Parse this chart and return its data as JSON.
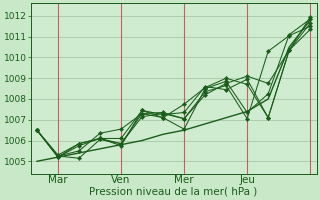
{
  "background_color": "#c8e8c8",
  "plot_bg_color": "#d0ecd0",
  "grid_color_v": "#c06060",
  "grid_color_h": "#a8c8a8",
  "line_color": "#1a5c1a",
  "marker_color": "#1a5c1a",
  "xlabel": "Pression niveau de la mer( hPa )",
  "ylim": [
    1004.4,
    1012.6
  ],
  "yticks": [
    1005,
    1006,
    1007,
    1008,
    1009,
    1010,
    1011,
    1012
  ],
  "day_labels": [
    "Mar",
    "Ven",
    "Mer",
    "Jeu"
  ],
  "series": [
    [
      1006.5,
      1005.25,
      1005.15,
      1006.05,
      1005.85,
      1007.15,
      1007.3,
      1007.05,
      1008.35,
      1008.65,
      1007.05,
      1010.3,
      1011.05,
      1011.5
    ],
    [
      1006.5,
      1005.2,
      1005.75,
      1006.1,
      1005.75,
      1007.45,
      1007.1,
      1006.55,
      1008.5,
      1008.85,
      1007.35,
      1008.25,
      1011.1,
      1011.85
    ],
    [
      1006.5,
      1005.2,
      1005.85,
      1006.1,
      1005.85,
      1007.3,
      1007.1,
      1007.75,
      1008.55,
      1009.0,
      1008.7,
      1007.1,
      1010.35,
      1011.65
    ],
    [
      1006.5,
      1005.3,
      1005.85,
      1006.1,
      1006.1,
      1007.45,
      1007.25,
      1007.35,
      1008.6,
      1008.45,
      1008.95,
      1007.1,
      1010.35,
      1011.35
    ],
    [
      1006.5,
      1005.25,
      1005.5,
      1006.35,
      1006.55,
      1007.3,
      1007.35,
      1007.05,
      1008.2,
      1008.75,
      1009.1,
      1008.75,
      1010.35,
      1011.95
    ],
    [
      1005.0,
      1005.2,
      1005.4,
      1005.6,
      1005.8,
      1006.0,
      1006.3,
      1006.5,
      1006.8,
      1007.1,
      1007.4,
      1008.0,
      1010.5,
      1011.8
    ]
  ],
  "n_points": 14,
  "day_tick_x": [
    1,
    4,
    7,
    10,
    13
  ],
  "xlabel_fontsize": 7.5,
  "ytick_fontsize": 6.5,
  "xtick_fontsize": 7.5
}
